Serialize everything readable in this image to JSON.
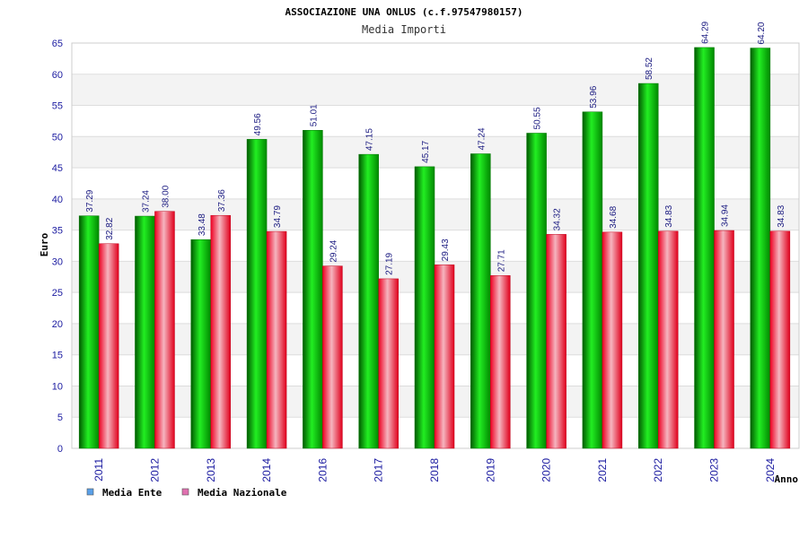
{
  "chart_data": {
    "type": "bar",
    "title": "ASSOCIAZIONE UNA ONLUS (c.f.97547980157)",
    "subtitle": "Media Importi",
    "xlabel": "Anno",
    "ylabel": "Euro",
    "ylim": [
      0,
      65
    ],
    "yticks": [
      "0",
      "5",
      "10",
      "15",
      "20",
      "25",
      "30",
      "35",
      "40",
      "45",
      "50",
      "55",
      "60",
      "65"
    ],
    "categories": [
      "2011",
      "2012",
      "2013",
      "2014",
      "2016",
      "2017",
      "2018",
      "2019",
      "2020",
      "2021",
      "2022",
      "2023",
      "2024"
    ],
    "series": [
      {
        "name": "Media Ente",
        "color": "#00bb00",
        "legend_color": "#5aa0e8",
        "values": [
          37.29,
          37.24,
          33.48,
          49.56,
          51.01,
          47.15,
          45.17,
          47.24,
          50.55,
          53.96,
          58.52,
          64.29,
          64.2
        ],
        "labels": [
          "37.29",
          "37.24",
          "33.48",
          "49.56",
          "51.01",
          "47.15",
          "45.17",
          "47.24",
          "50.55",
          "53.96",
          "58.52",
          "64.29",
          "64.20"
        ]
      },
      {
        "name": "Media Nazionale",
        "color": "#e8112d",
        "legend_color": "#e070b0",
        "values": [
          32.82,
          38.0,
          37.36,
          34.79,
          29.24,
          27.19,
          29.43,
          27.71,
          34.32,
          34.68,
          34.83,
          34.94,
          34.83
        ],
        "labels": [
          "32.82",
          "38.00",
          "37.36",
          "34.79",
          "29.24",
          "27.19",
          "29.43",
          "27.71",
          "34.32",
          "34.68",
          "34.83",
          "34.94",
          "34.83"
        ]
      }
    ],
    "grid": true,
    "legend_position": "bottom-left"
  }
}
